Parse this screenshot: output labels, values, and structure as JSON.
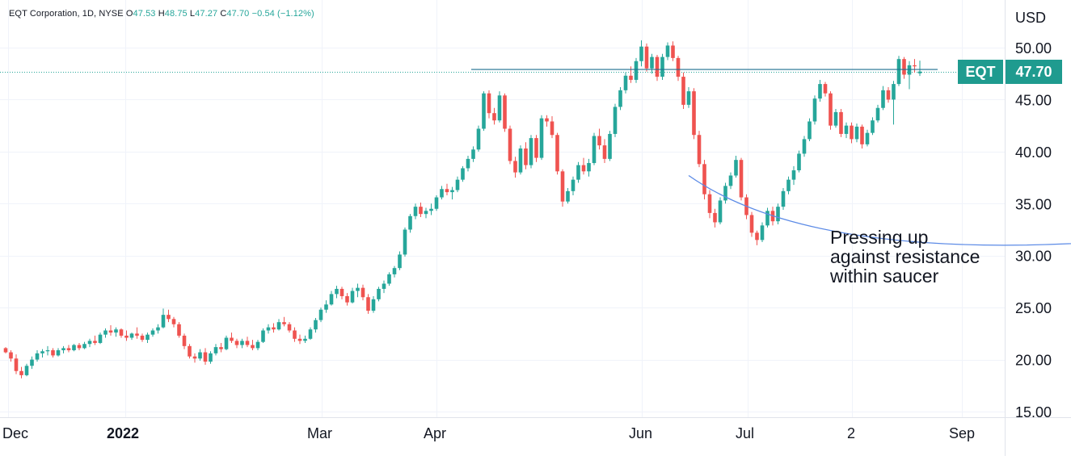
{
  "header": {
    "symbol": "EQT Corporation, 1D, NYSE",
    "open_label": "O",
    "open": "47.53",
    "high_label": "H",
    "high": "48.75",
    "low_label": "L",
    "low": "47.27",
    "close_label": "C",
    "close": "47.70",
    "change": "−0.54 (−1.12%)"
  },
  "annotation": "Pressing up\nagainst resistance\nwithin saucer",
  "price_tag": {
    "symbol": "EQT",
    "price": "47.70"
  },
  "colors": {
    "up": "#26a69a",
    "down": "#ef5350",
    "line": "#1e6f8f",
    "saucer": "#5b8ae6",
    "tag": "#1f9b8f"
  },
  "chart_data": {
    "type": "candlestick",
    "currency": "USD",
    "ylim": [
      15,
      52
    ],
    "yticks": [
      "50.00",
      "45.00",
      "40.00",
      "35.00",
      "30.00",
      "25.00",
      "20.00",
      "15.00"
    ],
    "xtick_labels": [
      "Dec",
      "2022",
      "Mar",
      "Apr",
      "Jun",
      "Jul",
      "2",
      "Sep"
    ],
    "grid": true,
    "last_price": 47.7,
    "resistance": 47.9,
    "saucer": {
      "start": [
        130,
        37.7
      ],
      "bottom": [
        190,
        31.0
      ],
      "end": [
        294,
        37.7
      ]
    },
    "arrow": {
      "from": [
        290,
        34.0
      ],
      "to": [
        285,
        45.9
      ]
    },
    "ohlc": [
      [
        21.1,
        21.2,
        20.6,
        20.7
      ],
      [
        20.7,
        20.9,
        19.8,
        20.1
      ],
      [
        20.1,
        20.5,
        18.6,
        18.9
      ],
      [
        18.9,
        19.3,
        18.2,
        18.5
      ],
      [
        18.5,
        19.6,
        18.4,
        19.4
      ],
      [
        19.4,
        20.3,
        19.1,
        20.0
      ],
      [
        20.0,
        20.9,
        19.8,
        20.6
      ],
      [
        20.6,
        21.0,
        20.2,
        20.8
      ],
      [
        20.8,
        21.3,
        20.4,
        20.9
      ],
      [
        20.9,
        21.1,
        20.2,
        20.4
      ],
      [
        20.4,
        21.1,
        20.3,
        20.9
      ],
      [
        20.9,
        21.3,
        20.6,
        21.1
      ],
      [
        21.1,
        21.4,
        20.7,
        20.9
      ],
      [
        20.9,
        21.5,
        20.8,
        21.4
      ],
      [
        21.4,
        21.6,
        20.9,
        21.1
      ],
      [
        21.1,
        21.7,
        21.0,
        21.5
      ],
      [
        21.5,
        22.0,
        21.2,
        21.8
      ],
      [
        21.8,
        22.3,
        21.4,
        21.6
      ],
      [
        21.6,
        22.6,
        21.5,
        22.4
      ],
      [
        22.4,
        23.0,
        22.1,
        22.8
      ],
      [
        22.8,
        23.3,
        22.3,
        22.6
      ],
      [
        22.6,
        23.1,
        22.2,
        22.9
      ],
      [
        22.9,
        23.0,
        22.1,
        22.3
      ],
      [
        22.3,
        22.8,
        21.8,
        22.1
      ],
      [
        22.1,
        22.6,
        21.9,
        22.5
      ],
      [
        22.5,
        23.1,
        22.0,
        22.3
      ],
      [
        22.3,
        22.5,
        21.7,
        21.9
      ],
      [
        21.9,
        22.6,
        21.6,
        22.4
      ],
      [
        22.4,
        23.0,
        22.2,
        22.8
      ],
      [
        22.8,
        23.4,
        22.5,
        23.1
      ],
      [
        23.1,
        24.9,
        23.0,
        24.3
      ],
      [
        24.3,
        24.8,
        23.6,
        23.9
      ],
      [
        23.9,
        24.1,
        23.1,
        23.4
      ],
      [
        23.4,
        23.6,
        22.1,
        22.3
      ],
      [
        22.3,
        22.5,
        21.0,
        21.3
      ],
      [
        21.3,
        21.5,
        20.1,
        20.3
      ],
      [
        20.3,
        20.6,
        19.7,
        20.1
      ],
      [
        20.1,
        21.0,
        19.9,
        20.7
      ],
      [
        20.7,
        21.1,
        19.5,
        19.8
      ],
      [
        19.8,
        20.8,
        19.6,
        20.6
      ],
      [
        20.6,
        21.5,
        20.4,
        21.2
      ],
      [
        21.2,
        21.6,
        20.7,
        21.0
      ],
      [
        21.0,
        22.3,
        20.9,
        22.1
      ],
      [
        22.1,
        22.6,
        21.6,
        21.8
      ],
      [
        21.8,
        22.0,
        21.1,
        21.4
      ],
      [
        21.4,
        22.0,
        21.1,
        21.8
      ],
      [
        21.8,
        22.2,
        21.2,
        21.4
      ],
      [
        21.4,
        21.9,
        20.9,
        21.1
      ],
      [
        21.1,
        21.9,
        20.9,
        21.7
      ],
      [
        21.7,
        23.0,
        21.6,
        22.8
      ],
      [
        22.8,
        23.4,
        22.5,
        23.1
      ],
      [
        23.1,
        23.5,
        22.6,
        22.9
      ],
      [
        22.9,
        23.9,
        22.8,
        23.6
      ],
      [
        23.6,
        24.1,
        23.2,
        23.4
      ],
      [
        23.4,
        23.6,
        22.6,
        22.8
      ],
      [
        22.8,
        23.1,
        21.7,
        22.0
      ],
      [
        22.0,
        22.4,
        21.5,
        21.8
      ],
      [
        21.8,
        22.3,
        21.6,
        22.0
      ],
      [
        22.0,
        23.1,
        21.9,
        22.9
      ],
      [
        22.9,
        24.0,
        22.6,
        23.8
      ],
      [
        23.8,
        25.0,
        23.6,
        24.8
      ],
      [
        24.8,
        25.7,
        24.5,
        25.3
      ],
      [
        25.3,
        26.6,
        25.2,
        26.3
      ],
      [
        26.3,
        27.1,
        25.9,
        26.8
      ],
      [
        26.8,
        27.0,
        25.8,
        26.1
      ],
      [
        26.1,
        26.4,
        25.2,
        25.5
      ],
      [
        25.5,
        26.9,
        25.4,
        26.6
      ],
      [
        26.6,
        27.3,
        26.0,
        26.9
      ],
      [
        26.9,
        27.2,
        25.7,
        26.0
      ],
      [
        26.0,
        26.3,
        24.4,
        24.7
      ],
      [
        24.7,
        26.1,
        24.5,
        25.8
      ],
      [
        25.8,
        27.0,
        25.6,
        26.8
      ],
      [
        26.8,
        27.6,
        26.4,
        27.3
      ],
      [
        27.3,
        28.4,
        27.1,
        28.2
      ],
      [
        28.2,
        29.0,
        27.9,
        28.8
      ],
      [
        28.8,
        30.4,
        28.6,
        30.1
      ],
      [
        30.1,
        32.7,
        29.9,
        32.5
      ],
      [
        32.5,
        34.0,
        32.2,
        33.8
      ],
      [
        33.8,
        35.0,
        33.5,
        34.7
      ],
      [
        34.7,
        35.1,
        33.7,
        34.0
      ],
      [
        34.0,
        34.6,
        33.6,
        34.3
      ],
      [
        34.3,
        35.0,
        33.9,
        34.5
      ],
      [
        34.5,
        35.8,
        34.3,
        35.6
      ],
      [
        35.6,
        36.7,
        35.4,
        36.4
      ],
      [
        36.4,
        36.9,
        35.8,
        36.1
      ],
      [
        36.1,
        36.6,
        35.4,
        36.3
      ],
      [
        36.3,
        37.6,
        36.1,
        37.3
      ],
      [
        37.3,
        38.6,
        37.1,
        38.4
      ],
      [
        38.4,
        39.6,
        38.1,
        39.3
      ],
      [
        39.3,
        40.5,
        39.0,
        40.2
      ],
      [
        40.2,
        42.5,
        40.0,
        42.2
      ],
      [
        42.2,
        45.8,
        42.0,
        45.6
      ],
      [
        45.6,
        45.9,
        43.2,
        43.7
      ],
      [
        43.7,
        44.2,
        42.6,
        43.0
      ],
      [
        43.0,
        45.8,
        42.8,
        45.4
      ],
      [
        45.4,
        45.6,
        41.9,
        42.2
      ],
      [
        42.2,
        42.5,
        38.8,
        39.1
      ],
      [
        39.1,
        39.5,
        37.5,
        38.0
      ],
      [
        38.0,
        40.6,
        37.8,
        40.3
      ],
      [
        40.3,
        40.9,
        38.3,
        38.7
      ],
      [
        38.7,
        41.6,
        38.4,
        41.3
      ],
      [
        41.3,
        41.6,
        39.0,
        39.4
      ],
      [
        39.4,
        43.5,
        39.2,
        43.2
      ],
      [
        43.2,
        43.5,
        42.4,
        42.9
      ],
      [
        42.9,
        43.4,
        41.3,
        41.6
      ],
      [
        41.6,
        41.8,
        37.8,
        38.1
      ],
      [
        38.1,
        38.3,
        34.7,
        35.2
      ],
      [
        35.2,
        36.5,
        35.0,
        36.2
      ],
      [
        36.2,
        37.6,
        35.8,
        37.3
      ],
      [
        37.3,
        39.0,
        37.0,
        38.7
      ],
      [
        38.7,
        39.4,
        37.8,
        38.1
      ],
      [
        38.1,
        39.3,
        37.6,
        38.9
      ],
      [
        38.9,
        41.8,
        38.7,
        41.5
      ],
      [
        41.5,
        42.2,
        40.2,
        40.6
      ],
      [
        40.6,
        41.2,
        38.9,
        39.3
      ],
      [
        39.3,
        42.0,
        39.1,
        41.7
      ],
      [
        41.7,
        44.6,
        41.4,
        44.3
      ],
      [
        44.3,
        46.2,
        44.0,
        45.9
      ],
      [
        45.9,
        47.6,
        45.6,
        47.3
      ],
      [
        47.3,
        48.2,
        46.6,
        46.9
      ],
      [
        46.9,
        49.0,
        46.6,
        48.7
      ],
      [
        48.7,
        50.7,
        48.2,
        50.1
      ],
      [
        50.1,
        50.4,
        47.7,
        48.0
      ],
      [
        48.0,
        49.4,
        47.5,
        49.1
      ],
      [
        49.1,
        49.3,
        46.8,
        47.2
      ],
      [
        47.2,
        49.4,
        46.9,
        49.1
      ],
      [
        49.1,
        50.5,
        48.8,
        50.2
      ],
      [
        50.2,
        50.6,
        48.7,
        49.0
      ],
      [
        49.0,
        49.2,
        46.8,
        47.2
      ],
      [
        47.2,
        47.6,
        44.1,
        44.5
      ],
      [
        44.5,
        46.2,
        44.2,
        45.8
      ],
      [
        45.8,
        46.1,
        41.2,
        41.6
      ],
      [
        41.6,
        42.0,
        38.5,
        38.8
      ],
      [
        38.8,
        39.2,
        35.4,
        35.9
      ],
      [
        35.9,
        36.3,
        33.6,
        34.1
      ],
      [
        34.1,
        34.5,
        32.7,
        33.2
      ],
      [
        33.2,
        35.6,
        33.0,
        35.3
      ],
      [
        35.3,
        37.0,
        35.0,
        36.7
      ],
      [
        36.7,
        38.0,
        36.4,
        37.7
      ],
      [
        37.7,
        39.6,
        37.5,
        39.2
      ],
      [
        39.2,
        39.4,
        35.3,
        35.6
      ],
      [
        35.6,
        35.9,
        33.5,
        33.9
      ],
      [
        33.9,
        34.2,
        31.8,
        32.2
      ],
      [
        32.2,
        32.4,
        31.0,
        31.5
      ],
      [
        31.5,
        33.2,
        31.3,
        32.9
      ],
      [
        32.9,
        34.6,
        32.7,
        34.3
      ],
      [
        34.3,
        34.7,
        32.9,
        33.3
      ],
      [
        33.3,
        35.0,
        33.0,
        34.7
      ],
      [
        34.7,
        36.5,
        34.4,
        36.2
      ],
      [
        36.2,
        37.6,
        35.9,
        37.3
      ],
      [
        37.3,
        38.6,
        36.8,
        38.2
      ],
      [
        38.2,
        40.1,
        38.0,
        39.8
      ],
      [
        39.8,
        41.5,
        39.5,
        41.2
      ],
      [
        41.2,
        43.2,
        41.0,
        42.9
      ],
      [
        42.9,
        45.4,
        42.6,
        45.1
      ],
      [
        45.1,
        46.9,
        44.8,
        46.5
      ],
      [
        46.5,
        46.7,
        45.3,
        45.6
      ],
      [
        45.6,
        45.8,
        42.1,
        42.5
      ],
      [
        42.5,
        44.1,
        42.3,
        43.8
      ],
      [
        43.8,
        44.1,
        41.4,
        41.7
      ],
      [
        41.7,
        42.8,
        41.3,
        42.5
      ],
      [
        42.5,
        42.8,
        40.8,
        41.2
      ],
      [
        41.2,
        42.7,
        40.9,
        42.4
      ],
      [
        42.4,
        42.6,
        40.3,
        40.7
      ],
      [
        40.7,
        42.1,
        40.5,
        41.8
      ],
      [
        41.8,
        43.3,
        41.6,
        43.0
      ],
      [
        43.0,
        44.5,
        42.8,
        44.2
      ],
      [
        44.2,
        46.3,
        44.0,
        45.9
      ],
      [
        45.9,
        46.2,
        44.7,
        45.0
      ],
      [
        45.0,
        46.8,
        42.6,
        46.5
      ],
      [
        46.5,
        49.2,
        46.3,
        48.9
      ],
      [
        48.9,
        49.1,
        47.0,
        47.4
      ],
      [
        47.4,
        48.7,
        46.0,
        48.3
      ],
      [
        48.3,
        48.9,
        47.6,
        48.2
      ],
      [
        47.53,
        48.75,
        47.27,
        47.7
      ]
    ]
  }
}
